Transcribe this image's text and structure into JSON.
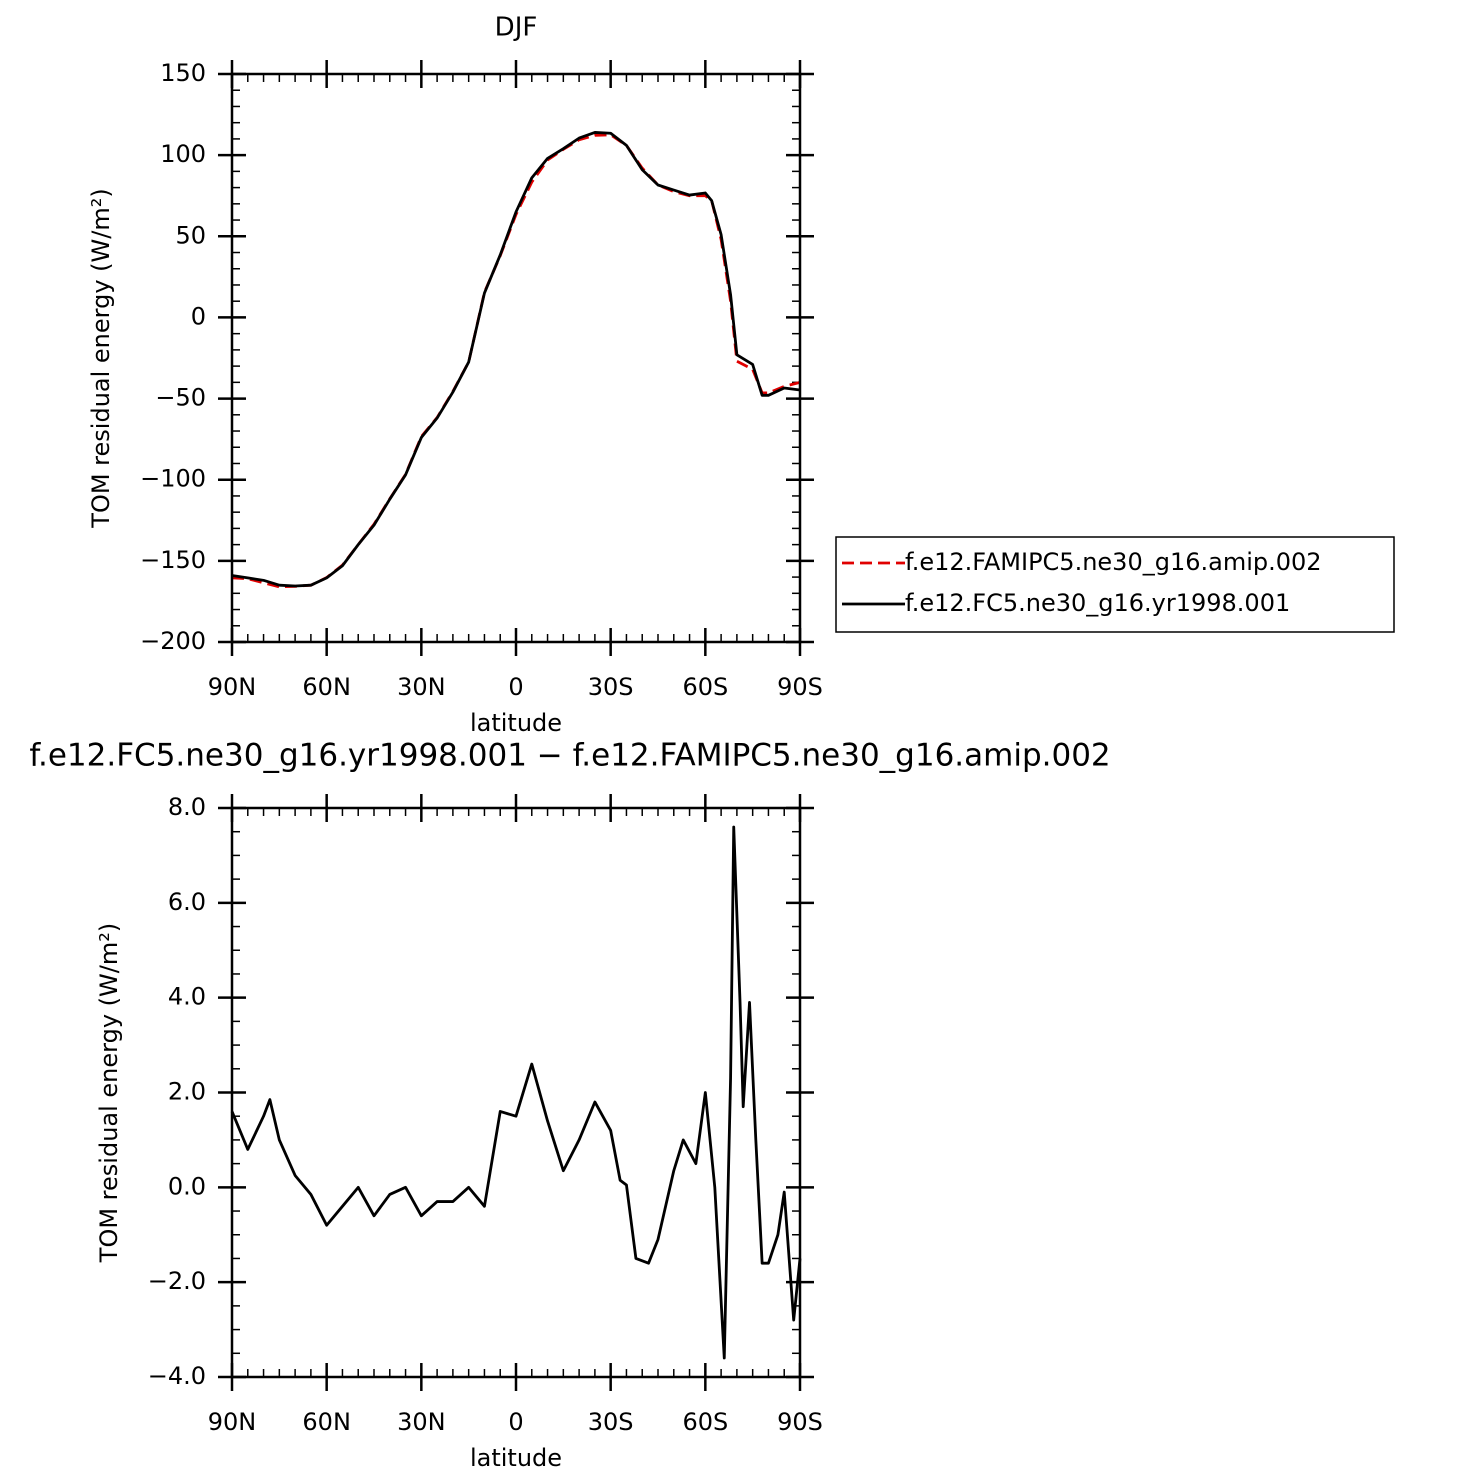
{
  "chart_data": [
    {
      "type": "line",
      "title": "DJF",
      "xlabel": "latitude",
      "ylabel": "TOM residual energy (W/m²)",
      "xlim": [
        90,
        -90
      ],
      "xticks": [
        {
          "value": 90,
          "label": "90N"
        },
        {
          "value": 60,
          "label": "60N"
        },
        {
          "value": 30,
          "label": "30N"
        },
        0,
        {
          "value": -30,
          "label": "30S"
        },
        {
          "value": -60,
          "label": "60S"
        },
        {
          "value": -90,
          "label": "90S"
        }
      ],
      "ylim": [
        -200,
        150
      ],
      "yticks": [
        {
          "value": -200,
          "label": "−200"
        },
        {
          "value": -150,
          "label": "−150"
        },
        {
          "value": -100,
          "label": "−100"
        },
        {
          "value": -50,
          "label": "−50"
        },
        0,
        50,
        100,
        150
      ],
      "x": [
        90,
        85,
        80,
        75,
        70,
        65,
        60,
        55,
        50,
        45,
        40,
        35,
        30,
        25,
        20,
        15,
        10,
        5,
        0,
        -5,
        -10,
        -15,
        -20,
        -25,
        -30,
        -35,
        -40,
        -45,
        -50,
        -55,
        -60,
        -62,
        -65,
        -68,
        -70,
        -75,
        -78,
        -80,
        -85,
        -90
      ],
      "series": [
        {
          "name": "f.e12.FAMIPC5.ne30_g16.amip.002",
          "color": "#e00000",
          "linestyle": "dashed",
          "values": [
            -160.5,
            -161,
            -163.5,
            -166,
            -165.7,
            -165,
            -160.3,
            -152.6,
            -140,
            -127.4,
            -111.8,
            -96.7,
            -73.4,
            -61.7,
            -45.6,
            -27.5,
            15.5,
            38,
            63.4,
            83.4,
            97,
            103.6,
            109.5,
            112.2,
            112.5,
            106,
            92,
            81.6,
            77.5,
            75,
            75,
            72,
            48,
            10,
            -27,
            -32,
            -46.5,
            -46.5,
            -42.5,
            -40
          ]
        },
        {
          "name": "f.e12.FC5.ne30_g16.yr1998.001",
          "color": "#000000",
          "linestyle": "solid",
          "values": [
            -159,
            -160.5,
            -162,
            -165,
            -165.5,
            -165,
            -160.5,
            -153,
            -140,
            -128,
            -112,
            -97,
            -74,
            -62,
            -46,
            -27.5,
            15,
            38.5,
            65,
            86,
            98,
            104,
            110.5,
            114,
            113.5,
            106,
            91,
            81.6,
            78.5,
            75.4,
            76.7,
            72,
            51,
            14,
            -23,
            -29,
            -48,
            -48,
            -43.5,
            -44.7
          ]
        }
      ]
    },
    {
      "type": "line",
      "title": "f.e12.FC5.ne30_g16.yr1998.001 − f.e12.FAMIPC5.ne30_g16.amip.002",
      "xlabel": "latitude",
      "ylabel": "TOM residual energy (W/m²)",
      "xlim": [
        90,
        -90
      ],
      "xticks": [
        {
          "value": 90,
          "label": "90N"
        },
        {
          "value": 60,
          "label": "60N"
        },
        {
          "value": 30,
          "label": "30N"
        },
        0,
        {
          "value": -30,
          "label": "30S"
        },
        {
          "value": -60,
          "label": "60S"
        },
        {
          "value": -90,
          "label": "90S"
        }
      ],
      "ylim": [
        -4,
        8
      ],
      "yticks": [
        {
          "value": -4,
          "label": "−4.0"
        },
        {
          "value": -2,
          "label": "−2.0"
        },
        {
          "value": 0,
          "label": "0.0"
        },
        {
          "value": 2,
          "label": "2.0"
        },
        {
          "value": 4,
          "label": "4.0"
        },
        {
          "value": 6,
          "label": "6.0"
        },
        {
          "value": 8,
          "label": "8.0"
        }
      ],
      "x": [
        90,
        85,
        80,
        78,
        75,
        70,
        65,
        60,
        55,
        50,
        45,
        40,
        35,
        30,
        25,
        20,
        15,
        10,
        5,
        0,
        -5,
        -10,
        -15,
        -20,
        -25,
        -30,
        -33,
        -35,
        -38,
        -42,
        -45,
        -50,
        -53,
        -57,
        -60,
        -63,
        -66,
        -68,
        -69,
        -71,
        -72,
        -74,
        -76,
        -78,
        -80,
        -83,
        -85,
        -88,
        -90
      ],
      "series": [
        {
          "color": "#000000",
          "linestyle": "solid",
          "values": [
            1.6,
            0.8,
            1.5,
            1.85,
            1.0,
            0.25,
            -0.15,
            -0.8,
            -0.4,
            0.0,
            -0.6,
            -0.15,
            0.0,
            -0.6,
            -0.3,
            -0.3,
            0.0,
            -0.4,
            1.6,
            1.5,
            2.6,
            1.4,
            0.35,
            1.0,
            1.8,
            1.2,
            0.15,
            0.05,
            -1.5,
            -1.6,
            -1.1,
            0.35,
            1.0,
            0.5,
            2.0,
            0.0,
            -3.6,
            2.3,
            7.6,
            3.9,
            1.7,
            3.9,
            1.0,
            -1.6,
            -1.6,
            -1.0,
            -0.1,
            -2.8,
            -1.5
          ]
        }
      ]
    }
  ]
}
